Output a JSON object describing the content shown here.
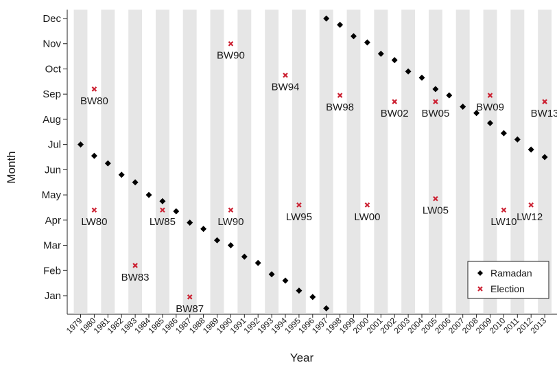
{
  "chart_data": {
    "type": "scatter",
    "xlabel": "Year",
    "ylabel": "Month",
    "xlim": [
      1979,
      2013
    ],
    "x_ticks": [
      "1979",
      "1980",
      "1981",
      "1982",
      "1983",
      "1984",
      "1985",
      "1986",
      "1987",
      "1988",
      "1989",
      "1990",
      "1991",
      "1992",
      "1993",
      "1994",
      "1995",
      "1996",
      "1997",
      "1998",
      "1999",
      "2000",
      "2001",
      "2002",
      "2003",
      "2004",
      "2005",
      "2006",
      "2007",
      "2008",
      "2009",
      "2010",
      "2011",
      "2012",
      "2013"
    ],
    "y_ticks": [
      "Jan",
      "Feb",
      "Mar",
      "Apr",
      "May",
      "Jun",
      "Jul",
      "Aug",
      "Sep",
      "Oct",
      "Nov",
      "Dec"
    ],
    "grid": "alternating vertical bands, one per year",
    "legend_position": "bottom-right",
    "series": [
      {
        "name": "Ramadan",
        "marker": "diamond",
        "color": "#000000",
        "points": [
          {
            "x": 1979,
            "y": 7.0
          },
          {
            "x": 1980,
            "y": 6.55
          },
          {
            "x": 1981,
            "y": 6.25
          },
          {
            "x": 1982,
            "y": 5.8
          },
          {
            "x": 1983,
            "y": 5.5
          },
          {
            "x": 1984,
            "y": 5.0
          },
          {
            "x": 1985,
            "y": 4.75
          },
          {
            "x": 1986,
            "y": 4.35
          },
          {
            "x": 1987,
            "y": 3.9
          },
          {
            "x": 1988,
            "y": 3.65
          },
          {
            "x": 1989,
            "y": 3.2
          },
          {
            "x": 1990,
            "y": 3.0
          },
          {
            "x": 1991,
            "y": 2.55
          },
          {
            "x": 1992,
            "y": 2.3
          },
          {
            "x": 1993,
            "y": 1.85
          },
          {
            "x": 1994,
            "y": 1.6
          },
          {
            "x": 1995,
            "y": 1.2
          },
          {
            "x": 1996,
            "y": 0.95
          },
          {
            "x": 1997,
            "y": 0.5
          },
          {
            "x": 1997,
            "y": 12.0
          },
          {
            "x": 1998,
            "y": 11.75
          },
          {
            "x": 1999,
            "y": 11.3
          },
          {
            "x": 2000,
            "y": 11.05
          },
          {
            "x": 2001,
            "y": 10.6
          },
          {
            "x": 2002,
            "y": 10.35
          },
          {
            "x": 2003,
            "y": 9.9
          },
          {
            "x": 2004,
            "y": 9.65
          },
          {
            "x": 2005,
            "y": 9.2
          },
          {
            "x": 2006,
            "y": 8.95
          },
          {
            "x": 2007,
            "y": 8.5
          },
          {
            "x": 2008,
            "y": 8.25
          },
          {
            "x": 2009,
            "y": 7.85
          },
          {
            "x": 2010,
            "y": 7.45
          },
          {
            "x": 2011,
            "y": 7.2
          },
          {
            "x": 2012,
            "y": 6.8
          },
          {
            "x": 2013,
            "y": 6.5
          }
        ]
      },
      {
        "name": "Election",
        "marker": "x",
        "color": "#cc2233",
        "points": [
          {
            "x": 1980,
            "y": 9.2,
            "label": "BW80",
            "label_dir": "below"
          },
          {
            "x": 1980,
            "y": 4.4,
            "label": "LW80",
            "label_dir": "below"
          },
          {
            "x": 1983,
            "y": 2.2,
            "label": "BW83",
            "label_dir": "below"
          },
          {
            "x": 1985,
            "y": 4.4,
            "label": "LW85",
            "label_dir": "below"
          },
          {
            "x": 1987,
            "y": 0.95,
            "label": "BW87",
            "label_dir": "below"
          },
          {
            "x": 1990,
            "y": 11.0,
            "label": "BW90",
            "label_dir": "below"
          },
          {
            "x": 1990,
            "y": 4.4,
            "label": "LW90",
            "label_dir": "below"
          },
          {
            "x": 1994,
            "y": 9.75,
            "label": "BW94",
            "label_dir": "below"
          },
          {
            "x": 1995,
            "y": 4.6,
            "label": "LW95",
            "label_dir": "below"
          },
          {
            "x": 1998,
            "y": 8.95,
            "label": "BW98",
            "label_dir": "below"
          },
          {
            "x": 2000,
            "y": 4.6,
            "label": "LW00",
            "label_dir": "below"
          },
          {
            "x": 2002,
            "y": 8.7,
            "label": "BW02",
            "label_dir": "below"
          },
          {
            "x": 2005,
            "y": 8.7,
            "label": "BW05",
            "label_dir": "below"
          },
          {
            "x": 2005,
            "y": 4.85,
            "label": "LW05",
            "label_dir": "below"
          },
          {
            "x": 2009,
            "y": 8.95,
            "label": "BW09",
            "label_dir": "below"
          },
          {
            "x": 2010,
            "y": 4.4,
            "label": "LW10",
            "label_dir": "below"
          },
          {
            "x": 2012,
            "y": 4.6,
            "label": "LW12",
            "label_dir": "left-below"
          },
          {
            "x": 2013,
            "y": 8.7,
            "label": "BW13",
            "label_dir": "below"
          }
        ]
      }
    ]
  }
}
